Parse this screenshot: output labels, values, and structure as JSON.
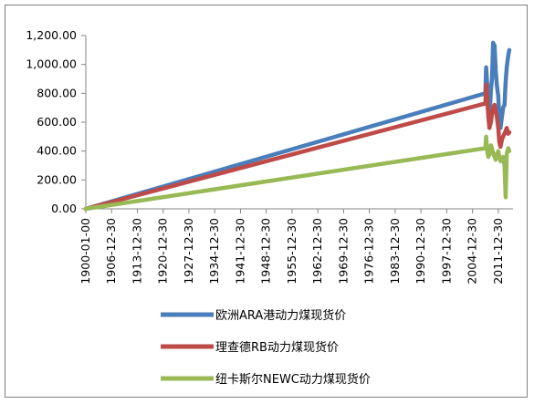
{
  "chart_data": {
    "type": "line",
    "title": "",
    "xlabel": "",
    "ylabel": "",
    "ylim": [
      0,
      1200
    ],
    "y_ticks": [
      "0.00",
      "200.00",
      "400.00",
      "600.00",
      "800.00",
      "1,000.00",
      "1,200.00"
    ],
    "y_tick_values": [
      0,
      200,
      400,
      600,
      800,
      1000,
      1200
    ],
    "x_ticks": [
      "1900-01-00",
      "1906-12-30",
      "1913-12-30",
      "1920-12-30",
      "1927-12-30",
      "1934-12-30",
      "1941-12-30",
      "1948-12-30",
      "1955-12-30",
      "1962-12-30",
      "1969-12-30",
      "1976-12-30",
      "1983-12-30",
      "1990-12-30",
      "1997-12-30",
      "2004-12-30",
      "2011-12-30"
    ],
    "x_tick_years": [
      1900,
      1907,
      1914,
      1921,
      1928,
      1935,
      1942,
      1949,
      1956,
      1963,
      1970,
      1977,
      1984,
      1991,
      1998,
      2005,
      2012
    ],
    "xlim": [
      1900,
      2016
    ],
    "grid": false,
    "legend_position": "bottom",
    "series": [
      {
        "name": "欧洲ARA港动力煤现货价",
        "color": "#4a7ebb",
        "x": [
          1900,
          2008.5,
          2008.7,
          2009.0,
          2009.3,
          2009.6,
          2010.0,
          2010.3,
          2010.6,
          2011.0,
          2011.3,
          2011.6,
          2012.0,
          2012.3,
          2012.6,
          2013.0,
          2013.3,
          2013.7,
          2014.0,
          2014.3,
          2014.7,
          2015.0
        ],
        "values": [
          0,
          800,
          980,
          860,
          700,
          620,
          820,
          900,
          1150,
          1130,
          960,
          860,
          780,
          620,
          560,
          640,
          700,
          720,
          880,
          980,
          1060,
          1100
        ]
      },
      {
        "name": "理查德RB动力煤现货价",
        "color": "#be4b48",
        "x": [
          1900,
          2008.5,
          2008.7,
          2009.0,
          2009.3,
          2009.6,
          2010.0,
          2010.3,
          2010.6,
          2011.0,
          2011.3,
          2011.6,
          2012.0,
          2012.3,
          2012.6,
          2013.0,
          2013.3,
          2013.7,
          2014.0,
          2014.3,
          2014.7,
          2015.0
        ],
        "values": [
          0,
          730,
          860,
          760,
          640,
          560,
          600,
          660,
          700,
          720,
          680,
          640,
          560,
          460,
          430,
          480,
          500,
          520,
          540,
          560,
          520,
          530
        ]
      },
      {
        "name": "纽卡斯尔NEWC动力煤现货价",
        "color": "#98b954",
        "x": [
          1900,
          2008.5,
          2008.7,
          2009.0,
          2009.3,
          2009.6,
          2010.0,
          2010.3,
          2010.6,
          2011.0,
          2011.3,
          2011.6,
          2012.0,
          2012.3,
          2012.6,
          2013.0,
          2013.3,
          2013.7,
          2014.0,
          2014.3,
          2014.7,
          2015.0
        ],
        "values": [
          0,
          420,
          500,
          400,
          360,
          380,
          440,
          420,
          380,
          360,
          340,
          380,
          400,
          360,
          330,
          340,
          360,
          300,
          80,
          380,
          420,
          400
        ]
      }
    ]
  }
}
